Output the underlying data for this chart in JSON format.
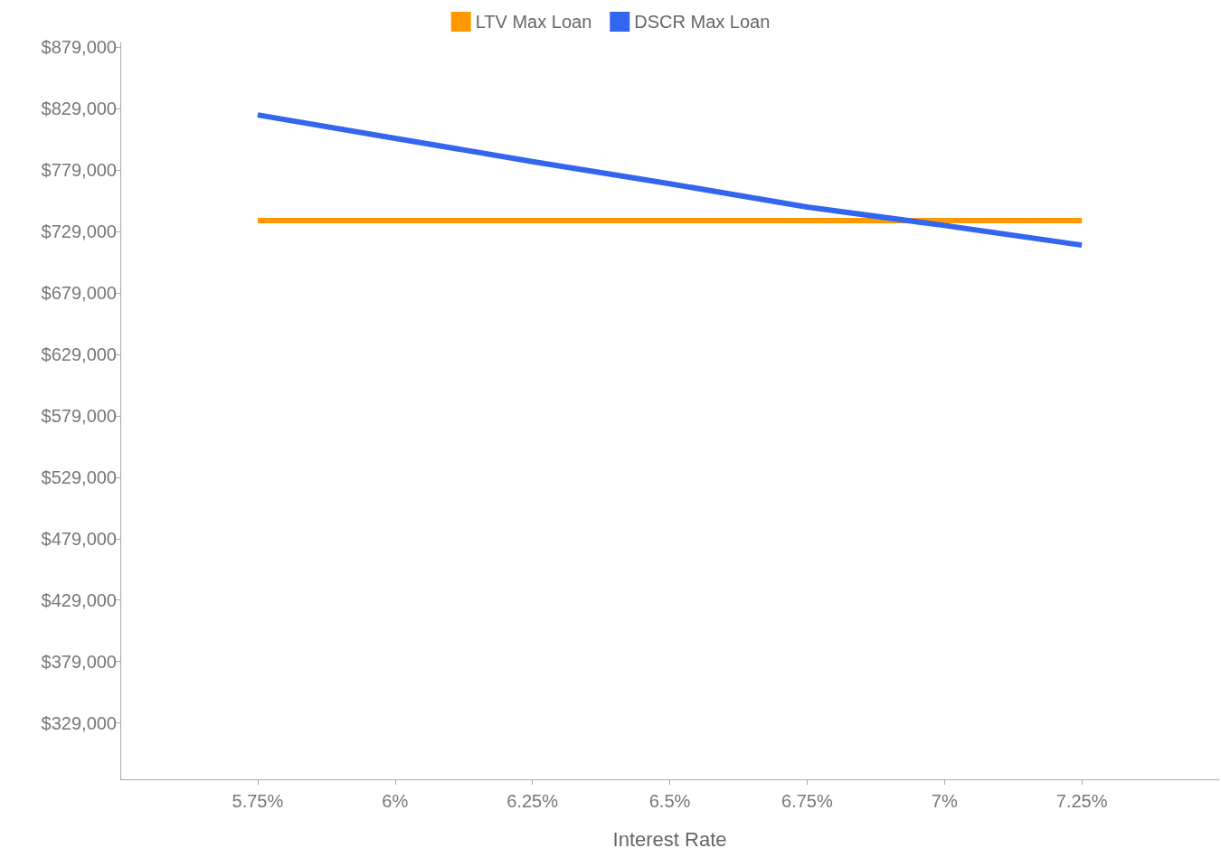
{
  "chart_data": {
    "type": "line",
    "xlabel": "Interest Rate",
    "x": [
      5.75,
      6,
      6.25,
      6.5,
      6.75,
      7,
      7.25
    ],
    "series": [
      {
        "name": "LTV Max Loan",
        "color": "#ff9900",
        "values": [
          738000,
          738000,
          738000,
          738000,
          738000,
          738000,
          738000
        ]
      },
      {
        "name": "DSCR Max Loan",
        "color": "#3366ee",
        "values": [
          824000,
          805000,
          786000,
          768000,
          749000,
          734000,
          718000
        ]
      }
    ],
    "xlim": [
      5.5,
      7.5
    ],
    "xticks": [
      {
        "value": 5.75,
        "label": "5.75%"
      },
      {
        "value": 6,
        "label": "6%"
      },
      {
        "value": 6.25,
        "label": "6.25%"
      },
      {
        "value": 6.5,
        "label": "6.5%"
      },
      {
        "value": 6.75,
        "label": "6.75%"
      },
      {
        "value": 7,
        "label": "7%"
      },
      {
        "value": 7.25,
        "label": "7.25%"
      }
    ],
    "ylim": [
      283000,
      883000
    ],
    "yticks": [
      {
        "value": 329000,
        "label": "$329,000"
      },
      {
        "value": 379000,
        "label": "$379,000"
      },
      {
        "value": 429000,
        "label": "$429,000"
      },
      {
        "value": 479000,
        "label": "$479,000"
      },
      {
        "value": 529000,
        "label": "$529,000"
      },
      {
        "value": 579000,
        "label": "$579,000"
      },
      {
        "value": 629000,
        "label": "$629,000"
      },
      {
        "value": 679000,
        "label": "$679,000"
      },
      {
        "value": 729000,
        "label": "$729,000"
      },
      {
        "value": 779000,
        "label": "$779,000"
      },
      {
        "value": 829000,
        "label": "$829,000"
      },
      {
        "value": 879000,
        "label": "$879,000"
      }
    ],
    "grid": false,
    "legend": "top",
    "marker": "none",
    "line_style": "solid"
  }
}
